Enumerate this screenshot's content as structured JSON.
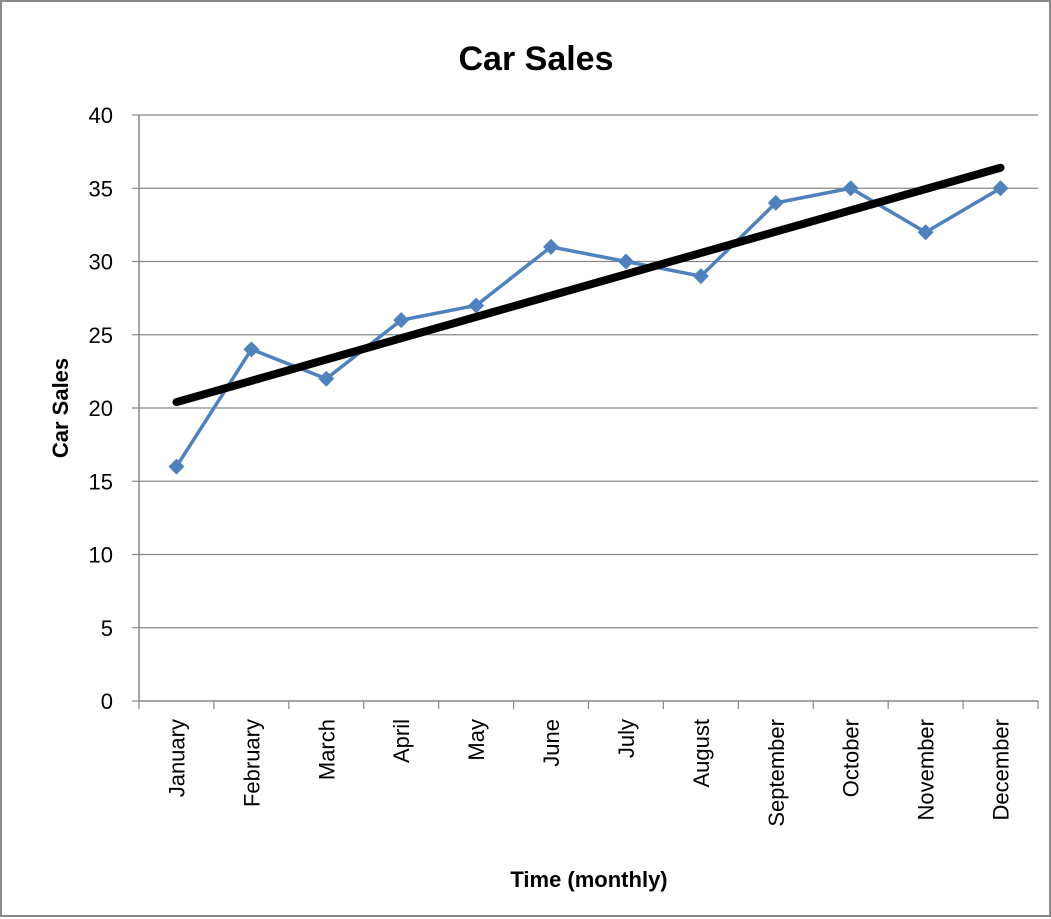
{
  "chart_data": {
    "type": "line",
    "title": "Car Sales",
    "xlabel": "Time (monthly)",
    "ylabel": "Car Sales",
    "categories": [
      "January",
      "February",
      "March",
      "April",
      "May",
      "June",
      "July",
      "August",
      "September",
      "October",
      "November",
      "December"
    ],
    "series": [
      {
        "values": [
          16,
          24,
          22,
          26,
          27,
          31,
          30,
          29,
          34,
          35,
          32,
          35
        ],
        "color": "#4f81bd",
        "marker": "diamond"
      }
    ],
    "trendline": {
      "type": "linear",
      "start": 20.4,
      "end": 36.4,
      "color": "#000000"
    },
    "ylim": [
      0,
      40
    ],
    "yticks": [
      "0",
      "5",
      "10",
      "15",
      "20",
      "25",
      "30",
      "35",
      "40"
    ],
    "grid": true,
    "legend": "none"
  }
}
